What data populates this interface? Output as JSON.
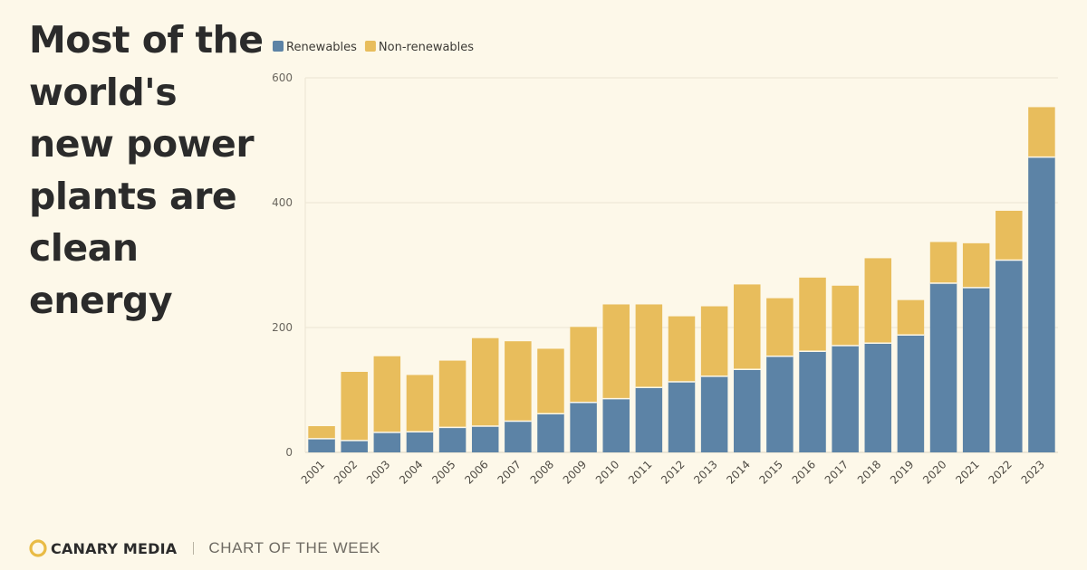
{
  "headline": "Most of the world's new power plants are clean energy",
  "footer": {
    "brand": "CANARY MEDIA",
    "tag": "CHART OF THE WEEK"
  },
  "colors": {
    "renewables": "#5c83a6",
    "non_renewables": "#e8bd5c",
    "background": "#fdf8e9",
    "brand_accent": "#e9bb45"
  },
  "chart_data": {
    "type": "bar",
    "stacked": true,
    "title": "Most of the world's new power plants are clean energy",
    "xlabel": "",
    "ylabel": "",
    "ylim": [
      0,
      600
    ],
    "yticks": [
      0,
      200,
      400,
      600
    ],
    "legend_position": "top-left",
    "grid": true,
    "categories": [
      "2001",
      "2002",
      "2003",
      "2004",
      "2005",
      "2006",
      "2007",
      "2008",
      "2009",
      "2010",
      "2011",
      "2012",
      "2013",
      "2014",
      "2015",
      "2016",
      "2017",
      "2018",
      "2019",
      "2020",
      "2021",
      "2022",
      "2023"
    ],
    "series": [
      {
        "name": "Renewables",
        "color": "#5c83a6",
        "values": [
          22,
          19,
          32,
          33,
          40,
          42,
          50,
          62,
          80,
          86,
          104,
          113,
          122,
          133,
          154,
          162,
          171,
          175,
          188,
          271,
          264,
          308,
          473
        ]
      },
      {
        "name": "Non-renewables",
        "color": "#e8bd5c",
        "values": [
          20,
          110,
          122,
          91,
          107,
          141,
          128,
          104,
          121,
          151,
          133,
          105,
          112,
          136,
          93,
          118,
          96,
          136,
          56,
          66,
          71,
          79,
          80
        ]
      }
    ]
  }
}
